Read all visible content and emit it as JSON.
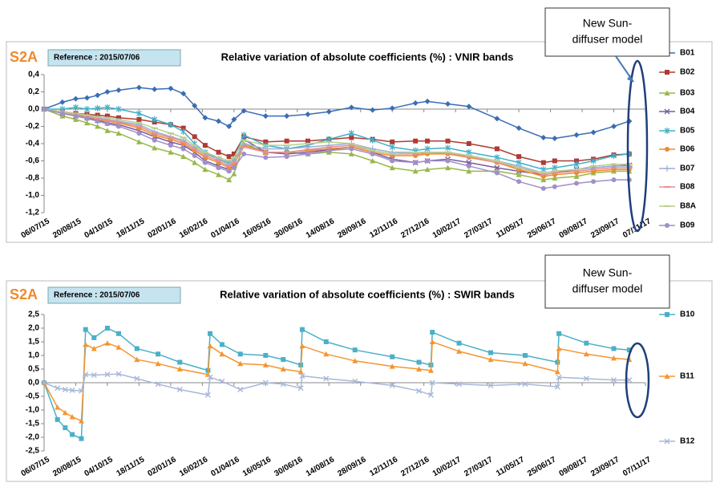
{
  "chart_data": [
    {
      "type": "line",
      "label": "S2A",
      "reference": "Reference : 2015/07/06",
      "title": "Relative variation of absolute coefficients  (%) : VNIR bands",
      "annotation": [
        "New Sun-",
        "diffuser model"
      ],
      "x": [
        "2015-07-06",
        "2015-08-01",
        "2015-08-20",
        "2015-09-05",
        "2015-09-20",
        "2015-10-04",
        "2015-10-20",
        "2015-11-18",
        "2015-12-10",
        "2016-01-02",
        "2016-01-20",
        "2016-02-05",
        "2016-02-20",
        "2016-03-10",
        "2016-03-25",
        "2016-04-01",
        "2016-04-15",
        "2016-05-16",
        "2016-06-15",
        "2016-07-15",
        "2016-08-14",
        "2016-09-15",
        "2016-10-15",
        "2016-11-12",
        "2016-12-15",
        "2017-01-01",
        "2017-01-30",
        "2017-03-01",
        "2017-04-10",
        "2017-05-11",
        "2017-06-15",
        "2017-07-01",
        "2017-08-01",
        "2017-08-25",
        "2017-09-23",
        "2017-10-15"
      ],
      "xlim": [
        "2015-07-06",
        "2017-11-07"
      ],
      "xticks": [
        {
          "value": "2015-07-06",
          "label": "06/07/15"
        },
        {
          "value": "2015-08-20",
          "label": "20/08/15"
        },
        {
          "value": "2015-10-04",
          "label": "04/10/15"
        },
        {
          "value": "2015-11-18",
          "label": "18/11/15"
        },
        {
          "value": "2016-01-02",
          "label": "02/01/16"
        },
        {
          "value": "2016-02-16",
          "label": "16/02/16"
        },
        {
          "value": "2016-04-01",
          "label": "01/04/16"
        },
        {
          "value": "2016-05-16",
          "label": "16/05/16"
        },
        {
          "value": "2016-06-30",
          "label": "30/06/16"
        },
        {
          "value": "2016-08-14",
          "label": "14/08/16"
        },
        {
          "value": "2016-09-28",
          "label": "28/09/16"
        },
        {
          "value": "2016-11-12",
          "label": "12/11/16"
        },
        {
          "value": "2016-12-27",
          "label": "27/12/16"
        },
        {
          "value": "2017-02-10",
          "label": "10/02/17"
        },
        {
          "value": "2017-03-27",
          "label": "27/03/17"
        },
        {
          "value": "2017-05-11",
          "label": "11/05/17"
        },
        {
          "value": "2017-06-25",
          "label": "25/06/17"
        },
        {
          "value": "2017-08-09",
          "label": "09/08/17"
        },
        {
          "value": "2017-09-23",
          "label": "23/09/17"
        },
        {
          "value": "2017-11-07",
          "label": "07/11/17"
        }
      ],
      "ylim": [
        -1.2,
        0.4
      ],
      "yticks": [
        {
          "value": 0.4,
          "label": "0,4"
        },
        {
          "value": 0.2,
          "label": "0,2"
        },
        {
          "value": 0,
          "label": "0,0"
        },
        {
          "value": -0.2,
          "label": "-0,2"
        },
        {
          "value": -0.4,
          "label": "-0,4"
        },
        {
          "value": -0.6,
          "label": "-0,6"
        },
        {
          "value": -0.8,
          "label": "-0,8"
        },
        {
          "value": -1,
          "label": "-1,0"
        },
        {
          "value": -1.2,
          "label": "-1,2"
        }
      ],
      "series": [
        {
          "name": "B01",
          "color": "#3a6db4",
          "marker": "diamond",
          "values": [
            0,
            0.08,
            0.12,
            0.13,
            0.16,
            0.2,
            0.22,
            0.25,
            0.23,
            0.24,
            0.18,
            0.04,
            -0.1,
            -0.14,
            -0.2,
            -0.12,
            -0.02,
            -0.08,
            -0.08,
            -0.06,
            -0.03,
            0.02,
            -0.01,
            0.01,
            0.07,
            0.09,
            0.06,
            0.03,
            -0.11,
            -0.22,
            -0.33,
            -0.34,
            -0.3,
            -0.27,
            -0.2,
            -0.14
          ]
        },
        {
          "name": "B02",
          "color": "#b03a34",
          "marker": "square",
          "values": [
            0,
            -0.03,
            -0.05,
            -0.06,
            -0.07,
            -0.08,
            -0.1,
            -0.12,
            -0.15,
            -0.18,
            -0.22,
            -0.32,
            -0.42,
            -0.5,
            -0.55,
            -0.52,
            -0.32,
            -0.38,
            -0.37,
            -0.37,
            -0.35,
            -0.33,
            -0.35,
            -0.38,
            -0.37,
            -0.37,
            -0.37,
            -0.4,
            -0.46,
            -0.55,
            -0.62,
            -0.6,
            -0.6,
            -0.58,
            -0.53,
            -0.52
          ]
        },
        {
          "name": "B03",
          "color": "#98b84a",
          "marker": "triangle",
          "values": [
            0,
            -0.08,
            -0.12,
            -0.16,
            -0.2,
            -0.25,
            -0.28,
            -0.38,
            -0.45,
            -0.5,
            -0.55,
            -0.62,
            -0.7,
            -0.76,
            -0.82,
            -0.75,
            -0.4,
            -0.5,
            -0.5,
            -0.52,
            -0.5,
            -0.52,
            -0.6,
            -0.68,
            -0.72,
            -0.7,
            -0.68,
            -0.72,
            -0.72,
            -0.76,
            -0.82,
            -0.8,
            -0.78,
            -0.74,
            -0.72,
            -0.72
          ]
        },
        {
          "name": "B04",
          "color": "#7a5aa0",
          "marker": "x",
          "values": [
            0,
            -0.05,
            -0.08,
            -0.1,
            -0.13,
            -0.16,
            -0.18,
            -0.25,
            -0.32,
            -0.38,
            -0.42,
            -0.5,
            -0.6,
            -0.66,
            -0.7,
            -0.66,
            -0.35,
            -0.5,
            -0.52,
            -0.5,
            -0.47,
            -0.44,
            -0.5,
            -0.58,
            -0.62,
            -0.6,
            -0.58,
            -0.62,
            -0.68,
            -0.72,
            -0.76,
            -0.74,
            -0.7,
            -0.68,
            -0.66,
            -0.65
          ]
        },
        {
          "name": "B05",
          "color": "#3fb0c8",
          "marker": "star",
          "values": [
            0,
            0,
            0.02,
            0,
            0.01,
            0.02,
            0,
            -0.05,
            -0.12,
            -0.18,
            -0.26,
            -0.4,
            -0.5,
            -0.58,
            -0.62,
            -0.58,
            -0.3,
            -0.42,
            -0.46,
            -0.42,
            -0.35,
            -0.28,
            -0.36,
            -0.44,
            -0.48,
            -0.46,
            -0.45,
            -0.5,
            -0.56,
            -0.62,
            -0.7,
            -0.68,
            -0.64,
            -0.6,
            -0.54,
            -0.52
          ]
        },
        {
          "name": "B06",
          "color": "#f08a2c",
          "marker": "circle",
          "values": [
            0,
            -0.04,
            -0.07,
            -0.09,
            -0.12,
            -0.14,
            -0.16,
            -0.22,
            -0.3,
            -0.35,
            -0.4,
            -0.48,
            -0.56,
            -0.62,
            -0.68,
            -0.64,
            -0.42,
            -0.5,
            -0.5,
            -0.48,
            -0.46,
            -0.44,
            -0.5,
            -0.54,
            -0.54,
            -0.52,
            -0.52,
            -0.56,
            -0.62,
            -0.7,
            -0.78,
            -0.76,
            -0.74,
            -0.72,
            -0.7,
            -0.7
          ]
        },
        {
          "name": "B07",
          "color": "#9ab0d8",
          "marker": "plus",
          "values": [
            0,
            -0.03,
            -0.06,
            -0.08,
            -0.1,
            -0.12,
            -0.14,
            -0.18,
            -0.26,
            -0.32,
            -0.36,
            -0.44,
            -0.52,
            -0.58,
            -0.64,
            -0.6,
            -0.4,
            -0.46,
            -0.46,
            -0.44,
            -0.42,
            -0.4,
            -0.46,
            -0.5,
            -0.5,
            -0.5,
            -0.5,
            -0.54,
            -0.6,
            -0.66,
            -0.74,
            -0.72,
            -0.7,
            -0.68,
            -0.66,
            -0.66
          ]
        },
        {
          "name": "B08",
          "color": "#e89090",
          "marker": "dash",
          "values": [
            0,
            -0.04,
            -0.06,
            -0.09,
            -0.11,
            -0.13,
            -0.15,
            -0.2,
            -0.28,
            -0.33,
            -0.38,
            -0.46,
            -0.54,
            -0.6,
            -0.66,
            -0.62,
            -0.44,
            -0.5,
            -0.5,
            -0.47,
            -0.44,
            -0.42,
            -0.48,
            -0.52,
            -0.52,
            -0.51,
            -0.51,
            -0.55,
            -0.62,
            -0.68,
            -0.76,
            -0.74,
            -0.72,
            -0.7,
            -0.68,
            -0.68
          ]
        },
        {
          "name": "B8A",
          "color": "#b8d08a",
          "marker": "dash",
          "values": [
            0,
            -0.03,
            -0.05,
            -0.07,
            -0.09,
            -0.1,
            -0.12,
            -0.16,
            -0.22,
            -0.28,
            -0.33,
            -0.42,
            -0.5,
            -0.56,
            -0.6,
            -0.56,
            -0.36,
            -0.42,
            -0.42,
            -0.4,
            -0.38,
            -0.4,
            -0.48,
            -0.52,
            -0.5,
            -0.5,
            -0.5,
            -0.54,
            -0.6,
            -0.68,
            -0.74,
            -0.72,
            -0.7,
            -0.66,
            -0.64,
            -0.64
          ]
        },
        {
          "name": "B09",
          "color": "#a090c8",
          "marker": "circle",
          "values": [
            0,
            -0.05,
            -0.08,
            -0.11,
            -0.14,
            -0.17,
            -0.2,
            -0.28,
            -0.36,
            -0.42,
            -0.46,
            -0.54,
            -0.62,
            -0.68,
            -0.72,
            -0.68,
            -0.52,
            -0.56,
            -0.55,
            -0.52,
            -0.48,
            -0.46,
            -0.52,
            -0.6,
            -0.62,
            -0.6,
            -0.6,
            -0.66,
            -0.74,
            -0.84,
            -0.92,
            -0.9,
            -0.86,
            -0.84,
            -0.82,
            -0.82
          ]
        }
      ]
    },
    {
      "type": "line",
      "label": "S2A",
      "reference": "Reference : 2015/07/06",
      "title": "Relative variation of absolute coefficients  (%) : SWIR bands",
      "annotation": [
        "New Sun-",
        "diffuser model"
      ],
      "x": [
        "2015-07-06",
        "2015-07-25",
        "2015-08-05",
        "2015-08-15",
        "2015-08-28",
        "2015-09-03",
        "2015-09-15",
        "2015-10-04",
        "2015-10-20",
        "2015-11-15",
        "2015-12-15",
        "2016-01-15",
        "2016-02-24",
        "2016-02-27",
        "2016-03-15",
        "2016-04-10",
        "2016-05-16",
        "2016-06-10",
        "2016-07-05",
        "2016-07-07",
        "2016-08-10",
        "2016-09-20",
        "2016-11-12",
        "2016-12-20",
        "2017-01-06",
        "2017-01-08",
        "2017-02-15",
        "2017-04-01",
        "2017-05-20",
        "2017-07-05",
        "2017-07-07",
        "2017-08-15",
        "2017-09-23",
        "2017-10-15"
      ],
      "xlim": [
        "2015-07-06",
        "2017-11-07"
      ],
      "xticks": [
        {
          "value": "2015-07-06",
          "label": "06/07/15"
        },
        {
          "value": "2015-08-20",
          "label": "20/08/15"
        },
        {
          "value": "2015-10-04",
          "label": "04/10/15"
        },
        {
          "value": "2015-11-18",
          "label": "18/11/15"
        },
        {
          "value": "2016-01-02",
          "label": "02/01/16"
        },
        {
          "value": "2016-02-16",
          "label": "16/02/16"
        },
        {
          "value": "2016-04-01",
          "label": "01/04/16"
        },
        {
          "value": "2016-05-16",
          "label": "16/05/16"
        },
        {
          "value": "2016-06-30",
          "label": "30/06/16"
        },
        {
          "value": "2016-08-14",
          "label": "14/08/16"
        },
        {
          "value": "2016-09-28",
          "label": "28/09/16"
        },
        {
          "value": "2016-11-12",
          "label": "12/11/16"
        },
        {
          "value": "2016-12-27",
          "label": "27/12/16"
        },
        {
          "value": "2017-02-10",
          "label": "10/02/17"
        },
        {
          "value": "2017-03-27",
          "label": "27/03/17"
        },
        {
          "value": "2017-05-11",
          "label": "11/05/17"
        },
        {
          "value": "2017-06-25",
          "label": "25/06/17"
        },
        {
          "value": "2017-08-09",
          "label": "09/08/17"
        },
        {
          "value": "2017-09-23",
          "label": "23/09/17"
        },
        {
          "value": "2017-11-07",
          "label": "07/11/17"
        }
      ],
      "ylim": [
        -2.5,
        2.5
      ],
      "yticks": [
        {
          "value": 2.5,
          "label": "2,5"
        },
        {
          "value": 2,
          "label": "2,0"
        },
        {
          "value": 1.5,
          "label": "1,5"
        },
        {
          "value": 1,
          "label": "1,0"
        },
        {
          "value": 0.5,
          "label": "0,5"
        },
        {
          "value": 0,
          "label": "0,0"
        },
        {
          "value": -0.5,
          "label": "-0,5"
        },
        {
          "value": -1,
          "label": "-1,0"
        },
        {
          "value": -1.5,
          "label": "-1,5"
        },
        {
          "value": -2,
          "label": "-2,0"
        },
        {
          "value": -2.5,
          "label": "-2,5"
        }
      ],
      "series": [
        {
          "name": "B10",
          "color": "#4ab0c8",
          "marker": "square",
          "values": [
            0,
            -1.35,
            -1.65,
            -1.9,
            -2.05,
            1.95,
            1.65,
            2.0,
            1.8,
            1.25,
            1.05,
            0.75,
            0.45,
            1.8,
            1.4,
            1.05,
            1.0,
            0.85,
            0.65,
            1.95,
            1.5,
            1.2,
            0.95,
            0.75,
            0.65,
            1.85,
            1.45,
            1.1,
            1.0,
            0.75,
            1.8,
            1.45,
            1.25,
            1.2
          ]
        },
        {
          "name": "B11",
          "color": "#f59530",
          "marker": "triangle",
          "values": [
            0,
            -0.9,
            -1.1,
            -1.25,
            -1.4,
            1.4,
            1.25,
            1.45,
            1.3,
            0.85,
            0.7,
            0.5,
            0.3,
            1.35,
            1.05,
            0.7,
            0.65,
            0.5,
            0.4,
            1.35,
            1.05,
            0.8,
            0.6,
            0.5,
            0.45,
            1.5,
            1.15,
            0.85,
            0.7,
            0.4,
            1.25,
            1.05,
            0.9,
            0.85
          ]
        },
        {
          "name": "B12",
          "color": "#a8b8d8",
          "marker": "x",
          "values": [
            0,
            -0.2,
            -0.25,
            -0.28,
            -0.3,
            0.3,
            0.28,
            0.3,
            0.32,
            0.15,
            -0.05,
            -0.25,
            -0.45,
            0.2,
            0.05,
            -0.25,
            0,
            -0.05,
            -0.2,
            0.25,
            0.15,
            0.05,
            -0.1,
            -0.3,
            -0.45,
            0,
            -0.05,
            -0.1,
            -0.05,
            -0.15,
            0.2,
            0.15,
            0.1,
            0.1
          ]
        }
      ]
    }
  ]
}
